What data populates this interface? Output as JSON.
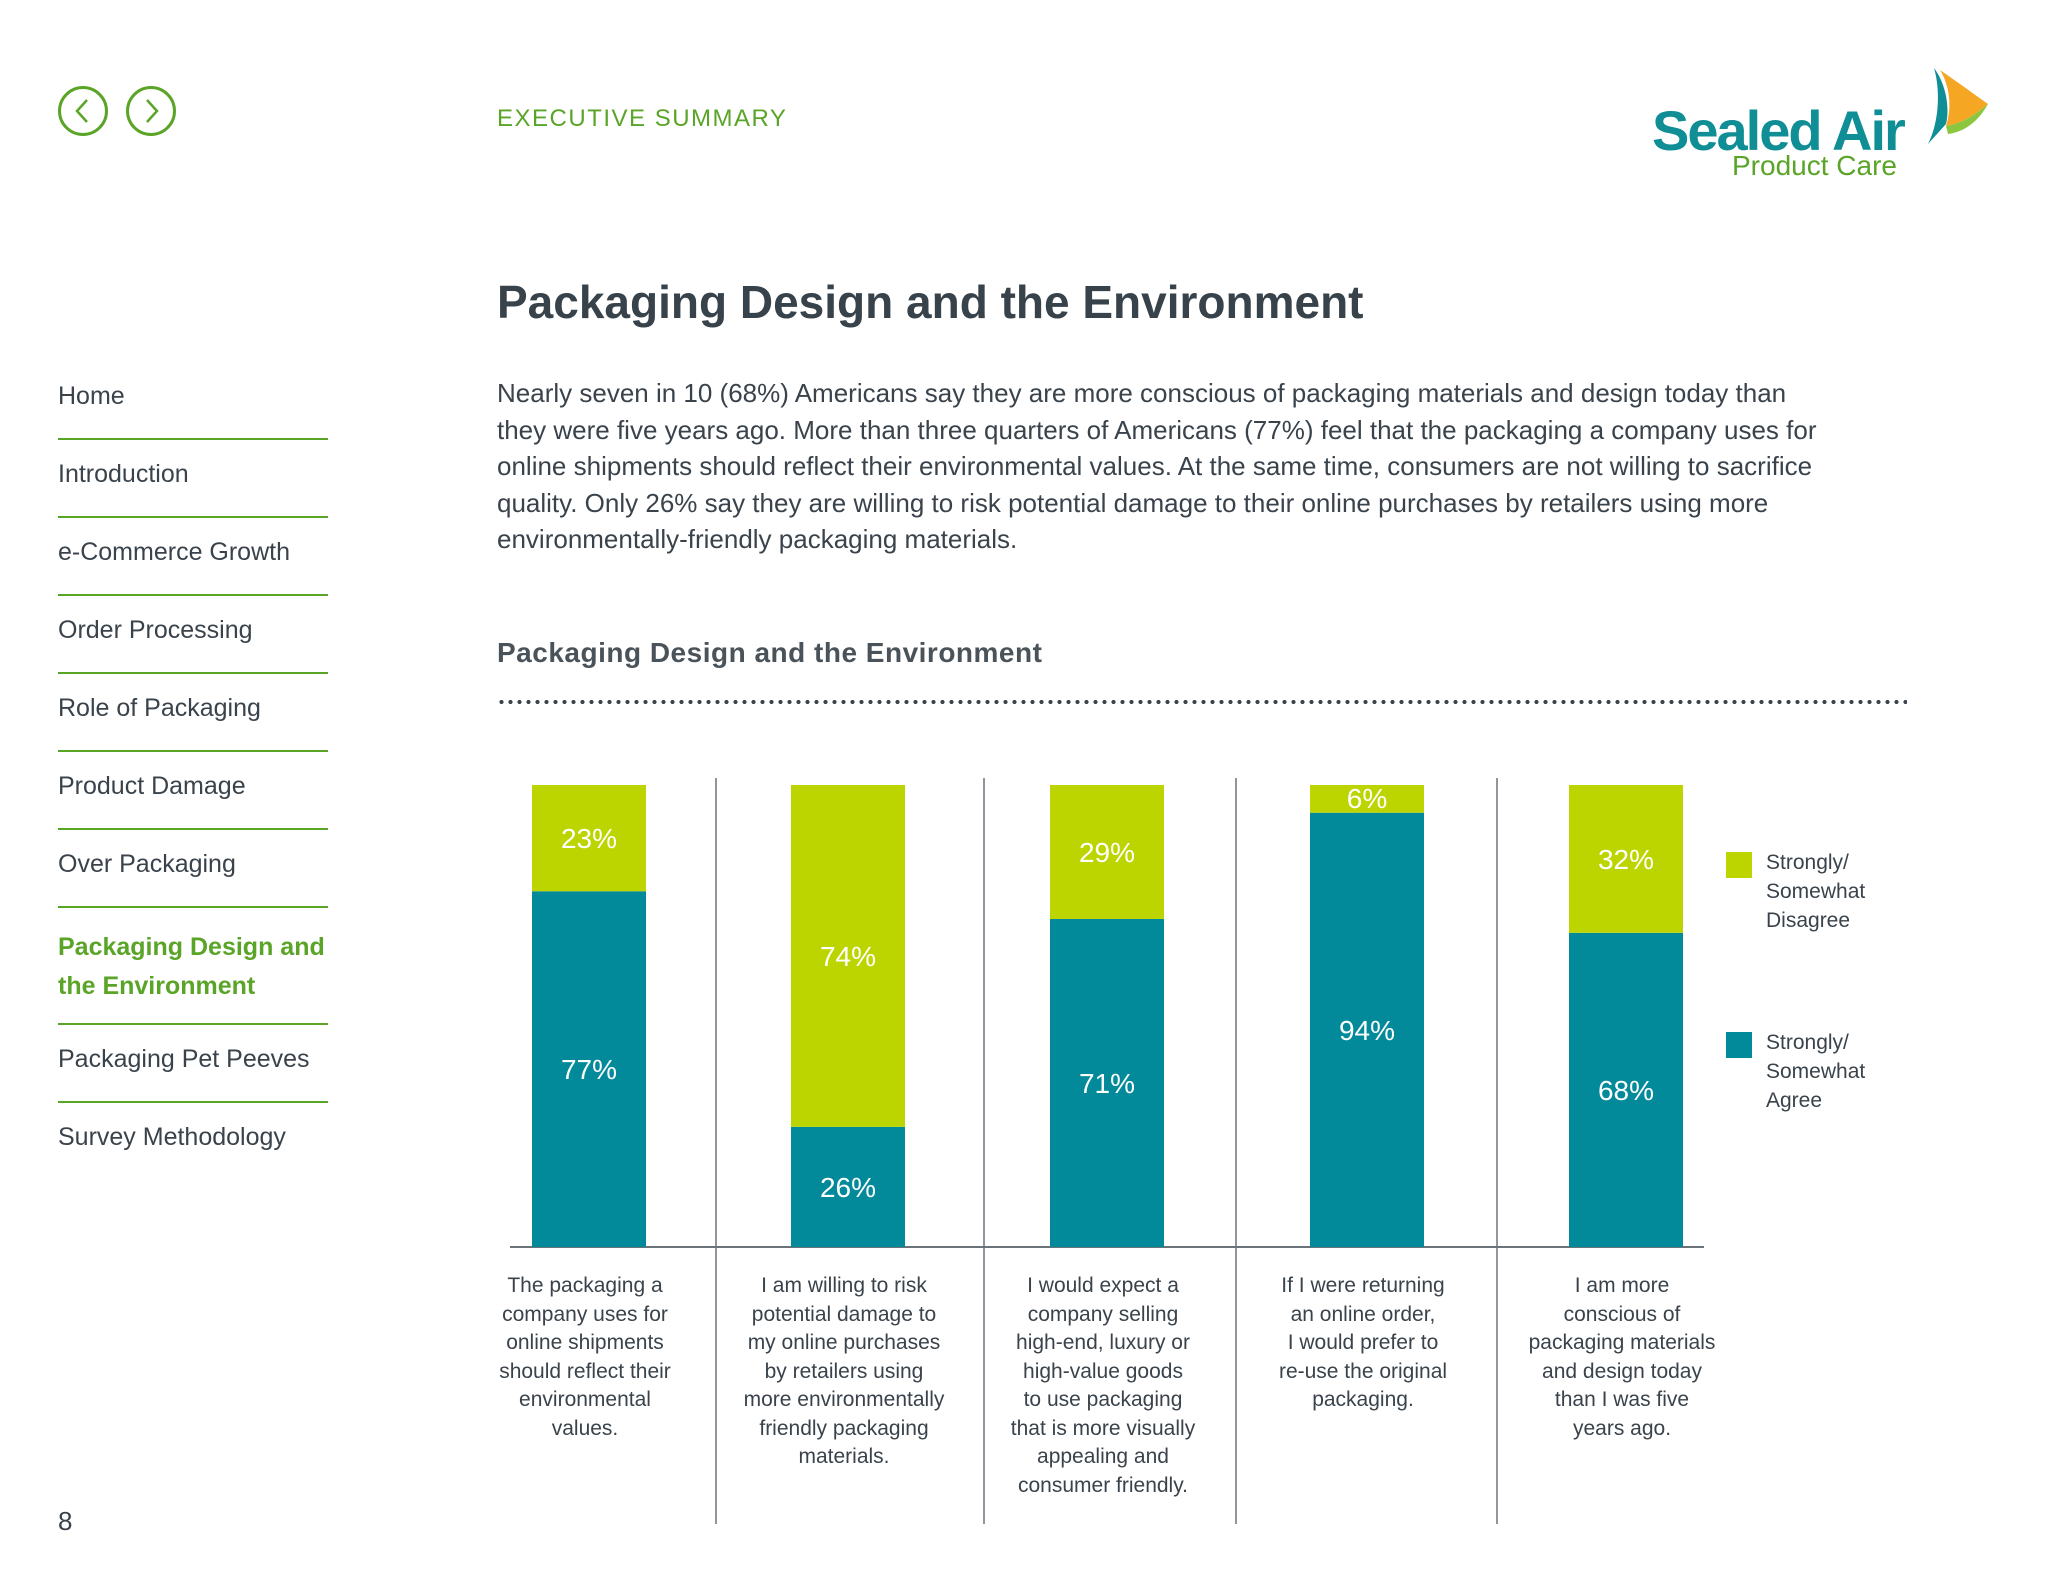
{
  "header": {
    "section_label": "EXECUTIVE SUMMARY",
    "logo_text": "Sealed Air",
    "logo_subtext": "Product Care"
  },
  "sidebar": {
    "items": [
      {
        "label": "Home"
      },
      {
        "label": "Introduction"
      },
      {
        "label": "e-Commerce Growth"
      },
      {
        "label": "Order Processing"
      },
      {
        "label": "Role of Packaging"
      },
      {
        "label": "Product Damage"
      },
      {
        "label": "Over Packaging"
      },
      {
        "label": "Packaging Design and the Environment",
        "active": true
      },
      {
        "label": "Packaging Pet Peeves"
      },
      {
        "label": "Survey Methodology"
      }
    ]
  },
  "page": {
    "title": "Packaging Design and the Environment",
    "intro": "Nearly seven in 10 (68%) Americans say they are more conscious of packaging materials and design today than they were five years ago. More than three quarters of Americans (77%) feel that the packaging a company uses for online shipments should reflect their environmental values. At the same time, consumers are not willing to sacrifice quality. Only 26% say they are willing to risk potential damage to their online purchases by retailers using more environmentally-friendly packaging materials.",
    "page_number": "8"
  },
  "colors": {
    "agree": "#02899a",
    "disagree": "#bcd500",
    "accent": "#5aa427"
  },
  "chart_data": {
    "type": "bar",
    "stacked": true,
    "title": "Packaging Design and the Environment",
    "categories": [
      "The packaging a company uses for online shipments should reflect their environmental values.",
      "I am willing to risk potential damage to my online purchases by retailers using more environmentally friendly packaging materials.",
      "I would expect a company selling high-end, luxury or high-value goods to use packaging that is more visually appealing and consumer friendly.",
      "If I were returning an online order, I would prefer to re-use the original packaging.",
      "I am more conscious of packaging materials and design today than I was five years ago."
    ],
    "category_lines": [
      [
        "The packaging a",
        "company uses for",
        "online shipments",
        "should reflect their",
        "environmental",
        "values."
      ],
      [
        "I am willing to risk",
        "potential damage to",
        "my online purchases",
        "by retailers using",
        "more environmentally",
        "friendly packaging",
        "materials."
      ],
      [
        "I would expect a",
        "company selling",
        "high-end, luxury or",
        "high-value goods",
        "to use packaging",
        "that is more visually",
        "appealing and",
        "consumer friendly."
      ],
      [
        "If I were returning",
        "an online order,",
        "I would prefer to",
        "re-use the original",
        "packaging."
      ],
      [
        "I am more",
        "conscious of",
        "packaging materials",
        "and design today",
        "than I was five",
        "years ago."
      ]
    ],
    "series": [
      {
        "name": "Strongly/ Somewhat Agree",
        "values": [
          77,
          26,
          71,
          94,
          68
        ],
        "labels": [
          "77%",
          "26%",
          "71%",
          "94%",
          "68%"
        ]
      },
      {
        "name": "Strongly/ Somewhat Disagree",
        "values": [
          23,
          74,
          29,
          6,
          32
        ],
        "labels": [
          "23%",
          "74%",
          "29%",
          "6%",
          "32%"
        ]
      }
    ],
    "legend_lines": [
      [
        "Strongly/",
        "Somewhat",
        "Disagree"
      ],
      [
        "Strongly/",
        "Somewhat",
        "Agree"
      ]
    ],
    "ylim": [
      0,
      100
    ],
    "legend_position": "right"
  }
}
